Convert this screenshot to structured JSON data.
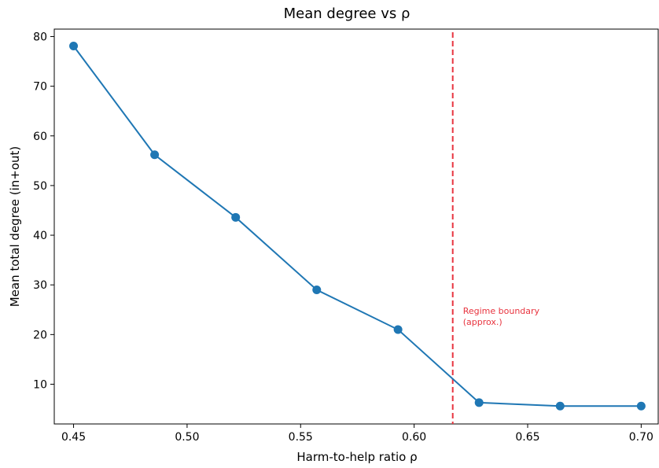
{
  "chart_data": {
    "type": "line",
    "title": "Mean degree vs ρ",
    "xlabel": "Harm-to-help ratio ρ",
    "ylabel": "Mean total degree (in+out)",
    "xlim": [
      0.4415,
      0.7075
    ],
    "ylim": [
      2.0,
      81.5
    ],
    "xticks": [
      0.45,
      0.5,
      0.55,
      0.6,
      0.65,
      0.7
    ],
    "xtick_labels": [
      "0.45",
      "0.50",
      "0.55",
      "0.60",
      "0.65",
      "0.70"
    ],
    "yticks": [
      10,
      20,
      30,
      40,
      50,
      60,
      70,
      80
    ],
    "ytick_labels": [
      "10",
      "20",
      "30",
      "40",
      "50",
      "60",
      "70",
      "80"
    ],
    "grid": false,
    "series": [
      {
        "color": "#1f77b4",
        "marker": "circle",
        "x": [
          0.45,
          0.4857,
          0.5214,
          0.5571,
          0.5929,
          0.6286,
          0.6643,
          0.7
        ],
        "y": [
          78.1,
          56.2,
          43.6,
          29.0,
          21.0,
          6.3,
          5.6,
          5.6
        ]
      }
    ],
    "reference_lines": [
      {
        "orientation": "vertical",
        "x": 0.617,
        "style": "dashed",
        "color": "#e8343f",
        "label_lines": [
          "Regime boundary",
          "(approx.)"
        ]
      }
    ]
  }
}
